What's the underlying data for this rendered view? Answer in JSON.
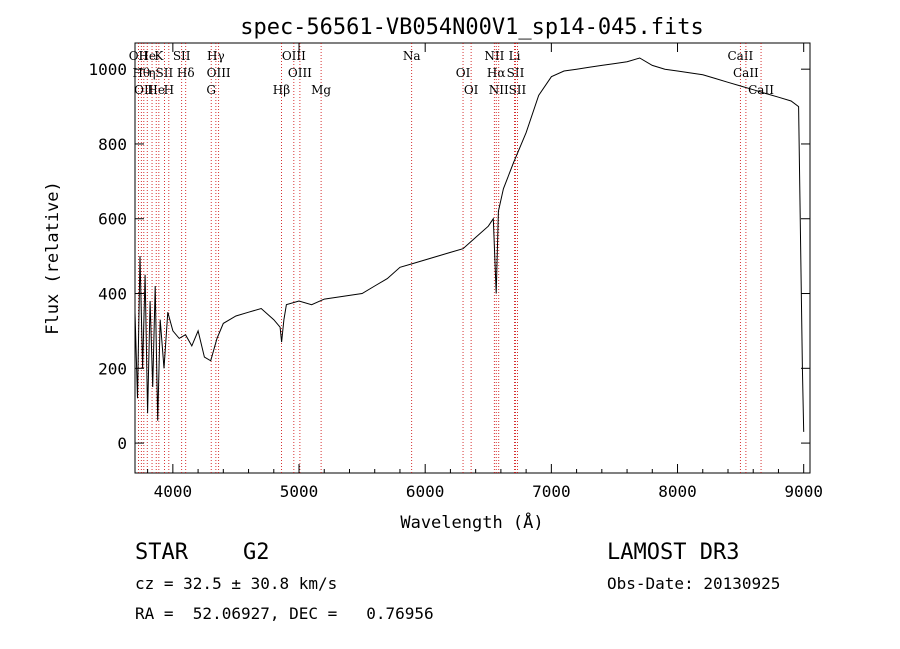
{
  "chart_data": {
    "type": "line",
    "title": "spec-56561-VB054N00V1_sp14-045.fits",
    "xlabel": "Wavelength (Å)",
    "ylabel": "Flux (relative)",
    "xlim": [
      3700,
      9050
    ],
    "ylim": [
      -80,
      1070
    ],
    "x_ticks": [
      4000,
      5000,
      6000,
      7000,
      8000,
      9000
    ],
    "y_ticks": [
      0,
      200,
      400,
      600,
      800,
      1000
    ],
    "series": [
      {
        "name": "flux",
        "x": [
          3700,
          3720,
          3740,
          3760,
          3780,
          3800,
          3820,
          3840,
          3860,
          3880,
          3900,
          3930,
          3960,
          4000,
          4050,
          4100,
          4150,
          4200,
          4250,
          4300,
          4350,
          4400,
          4450,
          4500,
          4600,
          4700,
          4800,
          4850,
          4862,
          4880,
          4900,
          5000,
          5100,
          5200,
          5300,
          5400,
          5500,
          5600,
          5700,
          5800,
          5900,
          6000,
          6100,
          6200,
          6300,
          6400,
          6500,
          6540,
          6563,
          6580,
          6620,
          6700,
          6800,
          6900,
          7000,
          7100,
          7200,
          7300,
          7400,
          7500,
          7600,
          7700,
          7800,
          7900,
          8000,
          8100,
          8200,
          8300,
          8400,
          8500,
          8600,
          8700,
          8800,
          8900,
          8960,
          8990,
          9000
        ],
        "y": [
          350,
          120,
          500,
          200,
          450,
          80,
          380,
          150,
          420,
          60,
          330,
          200,
          350,
          300,
          280,
          290,
          260,
          300,
          230,
          220,
          280,
          320,
          330,
          340,
          350,
          360,
          330,
          310,
          270,
          330,
          370,
          380,
          370,
          385,
          390,
          395,
          400,
          420,
          440,
          470,
          480,
          490,
          500,
          510,
          520,
          550,
          580,
          600,
          400,
          620,
          680,
          750,
          830,
          930,
          980,
          995,
          1000,
          1005,
          1010,
          1015,
          1020,
          1030,
          1010,
          1000,
          995,
          990,
          985,
          975,
          965,
          955,
          945,
          935,
          925,
          915,
          900,
          200,
          30
        ]
      }
    ],
    "line_markers": [
      {
        "x": 3727,
        "label": "OII"
      },
      {
        "x": 3750,
        "label": "Hθ"
      },
      {
        "x": 3770,
        "label": "OII"
      },
      {
        "x": 3797,
        "label": "He"
      },
      {
        "x": 3835,
        "label": "η"
      },
      {
        "x": 3868,
        "label": "He"
      },
      {
        "x": 3889,
        "label": "K"
      },
      {
        "x": 3933,
        "label": "SII"
      },
      {
        "x": 3968,
        "label": "H"
      },
      {
        "x": 4070,
        "label": "SII"
      },
      {
        "x": 4102,
        "label": "Hδ"
      },
      {
        "x": 4304,
        "label": "G"
      },
      {
        "x": 4341,
        "label": "Hγ"
      },
      {
        "x": 4363,
        "label": "OIII"
      },
      {
        "x": 4861,
        "label": "Hβ"
      },
      {
        "x": 4959,
        "label": "OIII"
      },
      {
        "x": 5007,
        "label": "OIII"
      },
      {
        "x": 5175,
        "label": "Mg"
      },
      {
        "x": 5893,
        "label": "Na"
      },
      {
        "x": 6300,
        "label": "OI"
      },
      {
        "x": 6364,
        "label": "OI"
      },
      {
        "x": 6548,
        "label": "NII"
      },
      {
        "x": 6563,
        "label": "Hα"
      },
      {
        "x": 6583,
        "label": "NII"
      },
      {
        "x": 6708,
        "label": "Li"
      },
      {
        "x": 6716,
        "label": "SII"
      },
      {
        "x": 6731,
        "label": "SII"
      },
      {
        "x": 8498,
        "label": "CaII"
      },
      {
        "x": 8542,
        "label": "CaII"
      },
      {
        "x": 8662,
        "label": "CaII"
      }
    ]
  },
  "info": {
    "object_class": "STAR",
    "subclass": "G2",
    "survey": "LAMOST DR3",
    "cz": "cz = 32.5 ± 30.8 km/s",
    "obs_date": "Obs-Date: 20130925",
    "coords": "RA =  52.06927, DEC =   0.76956"
  },
  "colors": {
    "line_marker": "#cc0000",
    "spectrum": "#000000"
  }
}
